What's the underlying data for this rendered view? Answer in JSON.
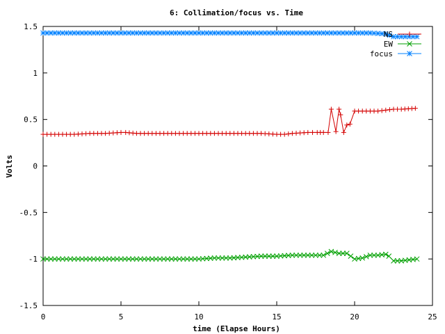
{
  "chart_data": {
    "type": "line",
    "title": "6: Collimation/focus vs. Time",
    "xlabel": "time (Elapse Hours)",
    "ylabel": "Volts",
    "xlim": [
      0,
      25
    ],
    "ylim": [
      -1.5,
      1.5
    ],
    "xticks": [
      "0",
      "5",
      "10",
      "15",
      "20",
      "25"
    ],
    "yticks": [
      "-1.5",
      "-1",
      "-0.5",
      "0",
      "0.5",
      "1",
      "1.5"
    ],
    "grid": false,
    "legend_position": "top-right",
    "series": [
      {
        "name": "NS",
        "color": "#d40000",
        "marker": "plus",
        "x": [
          0,
          1,
          2,
          3,
          4,
          5,
          5.3,
          6,
          7,
          8,
          9,
          10,
          11,
          12,
          13,
          14,
          15,
          15.5,
          16,
          17,
          17.6,
          18,
          18.3,
          18.5,
          18.8,
          19,
          19.1,
          19.3,
          19.5,
          19.7,
          20,
          21,
          21.5,
          22,
          22.5,
          23,
          23.9
        ],
        "y": [
          0.34,
          0.34,
          0.34,
          0.35,
          0.35,
          0.36,
          0.36,
          0.35,
          0.35,
          0.35,
          0.35,
          0.35,
          0.35,
          0.35,
          0.35,
          0.35,
          0.34,
          0.34,
          0.35,
          0.36,
          0.36,
          0.36,
          0.36,
          0.61,
          0.37,
          0.61,
          0.55,
          0.36,
          0.44,
          0.45,
          0.59,
          0.59,
          0.59,
          0.6,
          0.61,
          0.61,
          0.62
        ]
      },
      {
        "name": "EW",
        "color": "#00a000",
        "marker": "cross",
        "x": [
          0,
          2,
          4,
          6,
          8,
          10,
          11,
          12,
          13,
          14,
          15,
          16,
          17,
          18,
          18.5,
          19,
          19.5,
          20,
          20.5,
          21,
          21.5,
          22,
          22.2,
          22.5,
          23,
          23.5,
          24
        ],
        "y": [
          -1,
          -1,
          -1,
          -1,
          -1,
          -1,
          -0.99,
          -0.99,
          -0.98,
          -0.97,
          -0.97,
          -0.96,
          -0.96,
          -0.96,
          -0.92,
          -0.94,
          -0.94,
          -1,
          -0.99,
          -0.96,
          -0.96,
          -0.95,
          -0.97,
          -1.02,
          -1.02,
          -1.01,
          -1
        ]
      },
      {
        "name": "focus",
        "color": "#0080ff",
        "marker": "star",
        "x": [
          0,
          2,
          4,
          6,
          8,
          10,
          12,
          14,
          16,
          18,
          18.5,
          19,
          20,
          21,
          22,
          22.5,
          23,
          23.5,
          24
        ],
        "y": [
          1.43,
          1.43,
          1.43,
          1.43,
          1.43,
          1.43,
          1.43,
          1.43,
          1.43,
          1.43,
          1.43,
          1.43,
          1.43,
          1.43,
          1.42,
          1.39,
          1.39,
          1.39,
          1.39
        ]
      }
    ]
  }
}
